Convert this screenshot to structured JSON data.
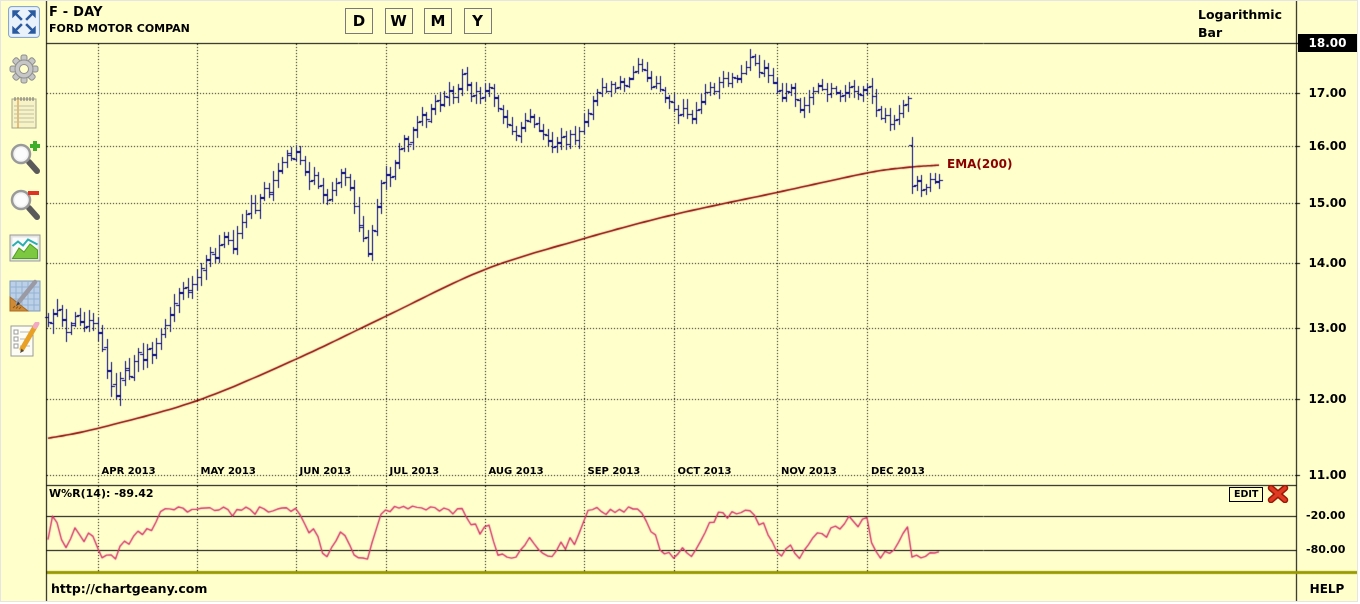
{
  "header": {
    "symbol_title": "F - DAY",
    "company": "FORD MOTOR COMPAN",
    "timeframe_buttons": [
      "D",
      "W",
      "M",
      "Y"
    ],
    "scale_label": "Logarithmic",
    "chart_type_label": "Bar"
  },
  "sidebar": {
    "icons": [
      "expand-icon",
      "settings-gear-icon",
      "notes-icon",
      "zoom-in-icon",
      "zoom-out-icon",
      "chart-style-icon",
      "draw-tools-icon",
      "edit-objects-icon"
    ]
  },
  "price_axis": {
    "labels": [
      "18.00",
      "17.00",
      "16.00",
      "15.00",
      "14.00",
      "13.00",
      "12.00",
      "11.00"
    ],
    "highlighted_label": "18.00"
  },
  "indicator": {
    "title": "W%R(14): -89.42",
    "edit_label": "EDIT",
    "close_icon": "close-icon",
    "level_labels": [
      "-20.00",
      "-80.00"
    ]
  },
  "footer": {
    "url": "http://chartgeany.com",
    "help_label": "HELP"
  },
  "colors": {
    "background": "#ffffcc",
    "bar": "#000080",
    "ema": "#8b0000",
    "wpr": "#d63069",
    "grid": "#000000",
    "separator": "#9a9a00",
    "axis_highlight_bg": "#000000",
    "axis_highlight_fg": "#ffffff"
  },
  "chart_data": {
    "type": "bar",
    "title": "F - DAY  FORD MOTOR COMPAN",
    "scale": "logarithmic",
    "ylim": [
      11,
      18
    ],
    "y_ticks": [
      18,
      17,
      16,
      15,
      14,
      13,
      12,
      11
    ],
    "grid": "dotted",
    "months": [
      {
        "label": "APR 2013",
        "i": 11
      },
      {
        "label": "MAY 2013",
        "i": 33
      },
      {
        "label": "JUN 2013",
        "i": 55
      },
      {
        "label": "JUL 2013",
        "i": 75
      },
      {
        "label": "AUG 2013",
        "i": 97
      },
      {
        "label": "SEP 2013",
        "i": 119
      },
      {
        "label": "OCT 2013",
        "i": 139
      },
      {
        "label": "NOV 2013",
        "i": 162
      },
      {
        "label": "DEC 2013",
        "i": 182
      }
    ],
    "closes": [
      13.1,
      13.22,
      13.28,
      13.12,
      12.95,
      13.05,
      13.18,
      13.1,
      13.02,
      13.12,
      13.08,
      12.95,
      12.7,
      12.4,
      12.18,
      12.05,
      12.28,
      12.4,
      12.32,
      12.52,
      12.65,
      12.55,
      12.7,
      12.62,
      12.78,
      12.92,
      13.05,
      13.22,
      13.38,
      13.55,
      13.62,
      13.58,
      13.68,
      13.78,
      13.92,
      14.05,
      14.18,
      14.1,
      14.3,
      14.45,
      14.38,
      14.25,
      14.5,
      14.68,
      14.82,
      15.0,
      14.88,
      15.1,
      15.25,
      15.18,
      15.4,
      15.58,
      15.72,
      15.85,
      15.78,
      15.92,
      15.75,
      15.55,
      15.38,
      15.48,
      15.3,
      15.15,
      15.05,
      15.22,
      15.35,
      15.52,
      15.45,
      15.28,
      14.95,
      14.6,
      14.42,
      14.15,
      14.55,
      14.95,
      15.35,
      15.5,
      15.45,
      15.7,
      15.95,
      16.15,
      16.05,
      16.3,
      16.45,
      16.6,
      16.5,
      16.7,
      16.85,
      16.78,
      16.95,
      17.05,
      16.92,
      17.1,
      17.38,
      17.15,
      16.95,
      17.05,
      16.9,
      17.05,
      17.12,
      16.9,
      16.72,
      16.55,
      16.42,
      16.28,
      16.2,
      16.35,
      16.48,
      16.55,
      16.42,
      16.3,
      16.22,
      16.12,
      15.98,
      16.08,
      16.18,
      16.05,
      16.22,
      16.12,
      16.28,
      16.45,
      16.62,
      16.85,
      17.02,
      17.12,
      17.05,
      17.18,
      17.1,
      17.22,
      17.15,
      17.28,
      17.42,
      17.58,
      17.48,
      17.3,
      17.12,
      17.2,
      17.08,
      16.92,
      16.85,
      16.7,
      16.58,
      16.72,
      16.6,
      16.52,
      16.68,
      16.85,
      17.02,
      17.12,
      17.05,
      17.22,
      17.3,
      17.2,
      17.32,
      17.28,
      17.4,
      17.52,
      17.72,
      17.6,
      17.42,
      17.52,
      17.35,
      17.22,
      17.05,
      16.92,
      17.05,
      17.12,
      16.88,
      16.68,
      16.78,
      16.92,
      17.05,
      17.15,
      17.08,
      16.98,
      17.1,
      17.02,
      16.95,
      17.02,
      17.12,
      17.05,
      16.98,
      17.08,
      17.12,
      16.95,
      16.68,
      16.52,
      16.58,
      16.42,
      16.48,
      16.62,
      16.78,
      16.9,
      15.3,
      15.38,
      15.22,
      15.28,
      15.42,
      15.38,
      15.4
    ],
    "ema": {
      "label": "EMA(200)",
      "period": 200,
      "keypoints": [
        [
          0,
          11.47
        ],
        [
          11,
          11.6
        ],
        [
          33,
          11.97
        ],
        [
          55,
          12.55
        ],
        [
          75,
          13.18
        ],
        [
          97,
          13.9
        ],
        [
          119,
          14.4
        ],
        [
          139,
          14.8
        ],
        [
          162,
          15.18
        ],
        [
          182,
          15.52
        ],
        [
          191,
          15.62
        ],
        [
          198,
          15.66
        ]
      ]
    },
    "wpr": {
      "name": "W%R",
      "period": 14,
      "current_value": -89.42,
      "levels": [
        -20,
        -80
      ],
      "range": [
        0,
        -100
      ]
    }
  }
}
